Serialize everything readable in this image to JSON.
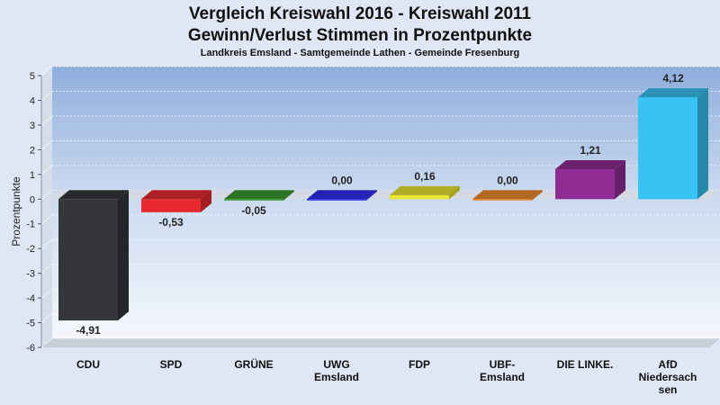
{
  "chart_data": {
    "type": "bar",
    "title": "Vergleich Kreiswahl 2016 - Kreiswahl 2011",
    "subtitle_line": "Gewinn/Verlust Stimmen in Prozentpunkte",
    "subtitle": "Landkreis Emsland - Samtgemeinde Lathen - Gemeinde Fresenburg",
    "xlabel": "",
    "ylabel": "Prozentpunkte",
    "ylim": [
      -6,
      5
    ],
    "yticks": [
      5,
      4,
      3,
      2,
      1,
      0,
      -1,
      -2,
      -3,
      -4,
      -5,
      -6
    ],
    "grid": true,
    "categories": [
      "CDU",
      "SPD",
      "GRÜNE",
      "UWG Emsland",
      "FDP",
      "UBF-Emsland",
      "DIE LINKE.",
      "AfD Niedersachsen"
    ],
    "category_lines": [
      [
        "CDU"
      ],
      [
        "SPD"
      ],
      [
        "GRÜNE"
      ],
      [
        "UWG",
        "Emsland"
      ],
      [
        "FDP"
      ],
      [
        "UBF-",
        "Emsland"
      ],
      [
        "DIE LINKE."
      ],
      [
        "AfD",
        "Niedersach",
        "sen"
      ]
    ],
    "values": [
      -4.91,
      -0.53,
      -0.05,
      0.0,
      0.16,
      0.0,
      1.21,
      4.12
    ],
    "value_labels": [
      "-4,91",
      "-0,53",
      "-0,05",
      "0,00",
      "0,16",
      "0,00",
      "1,21",
      "4,12"
    ],
    "colors": [
      "#343639",
      "#e8292f",
      "#3b9b2f",
      "#2d2df0",
      "#e8e62e",
      "#ef8a2f",
      "#8e2c93",
      "#37c3f3"
    ]
  }
}
